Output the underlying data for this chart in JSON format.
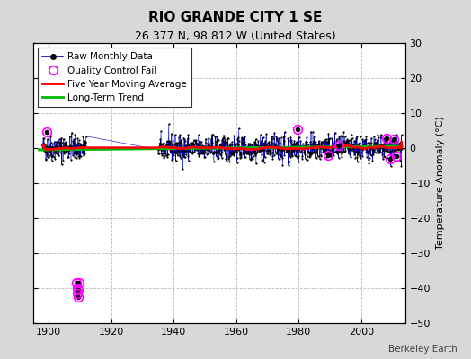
{
  "title": "RIO GRANDE CITY 1 SE",
  "subtitle": "26.377 N, 98.812 W (United States)",
  "ylabel": "Temperature Anomaly (°C)",
  "watermark": "Berkeley Earth",
  "xlim": [
    1895,
    2014
  ],
  "ylim": [
    -50,
    30
  ],
  "yticks": [
    -50,
    -40,
    -30,
    -20,
    -10,
    0,
    10,
    20,
    30
  ],
  "xticks": [
    1900,
    1920,
    1940,
    1960,
    1980,
    2000
  ],
  "bg_color": "#d8d8d8",
  "plot_bg_color": "#ffffff",
  "grid_color": "#aaaaaa",
  "raw_color": "#0000cc",
  "raw_marker_color": "#000000",
  "qc_color": "#ff00ff",
  "moving_avg_color": "#ff0000",
  "trend_color": "#00bb00",
  "seed": 42,
  "data_start_year": 1898,
  "data_end_year": 2012,
  "gap_start": 1912,
  "gap_end": 1935,
  "noise_std": 1.8,
  "outlier_year": 1909,
  "outlier_times": [
    1909.0,
    1909.1,
    1909.2,
    1909.35,
    1909.5,
    1909.65
  ],
  "outlier_values": [
    -38.5,
    -40.0,
    -41.5,
    -42.5,
    -40.5,
    -38.5
  ],
  "qc_in_data": [
    {
      "year": 1899.5,
      "val": 4.5
    },
    {
      "year": 1979.5,
      "val": 5.5
    },
    {
      "year": 1989.5,
      "val": -2.0
    },
    {
      "year": 1992.8,
      "val": 0.8
    },
    {
      "year": 2008.2,
      "val": 2.8
    },
    {
      "year": 2009.3,
      "val": -3.2
    },
    {
      "year": 2010.5,
      "val": 2.5
    },
    {
      "year": 2011.3,
      "val": -2.2
    }
  ],
  "legend_fontsize": 7.5,
  "tick_labelsize": 8,
  "title_fontsize": 11,
  "subtitle_fontsize": 9
}
